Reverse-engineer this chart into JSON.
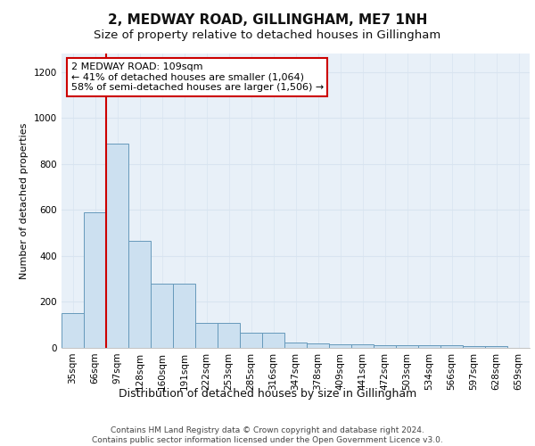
{
  "title": "2, MEDWAY ROAD, GILLINGHAM, ME7 1NH",
  "subtitle": "Size of property relative to detached houses in Gillingham",
  "xlabel": "Distribution of detached houses by size in Gillingham",
  "ylabel": "Number of detached properties",
  "categories": [
    "35sqm",
    "66sqm",
    "97sqm",
    "128sqm",
    "160sqm",
    "191sqm",
    "222sqm",
    "253sqm",
    "285sqm",
    "316sqm",
    "347sqm",
    "378sqm",
    "409sqm",
    "441sqm",
    "472sqm",
    "503sqm",
    "534sqm",
    "566sqm",
    "597sqm",
    "628sqm",
    "659sqm"
  ],
  "values": [
    150,
    590,
    890,
    465,
    280,
    280,
    110,
    110,
    65,
    65,
    25,
    20,
    15,
    15,
    10,
    10,
    10,
    10,
    8,
    8,
    0
  ],
  "bar_color": "#cce0f0",
  "bar_edge_color": "#6699bb",
  "red_line_index": 2,
  "annotation_text": "2 MEDWAY ROAD: 109sqm\n← 41% of detached houses are smaller (1,064)\n58% of semi-detached houses are larger (1,506) →",
  "annotation_box_color": "#ffffff",
  "annotation_box_edge_color": "#cc0000",
  "ylim": [
    0,
    1280
  ],
  "yticks": [
    0,
    200,
    400,
    600,
    800,
    1000,
    1200
  ],
  "grid_color": "#d8e4f0",
  "background_color": "#e8f0f8",
  "footer_text": "Contains HM Land Registry data © Crown copyright and database right 2024.\nContains public sector information licensed under the Open Government Licence v3.0.",
  "title_fontsize": 11,
  "subtitle_fontsize": 9.5,
  "xlabel_fontsize": 9,
  "ylabel_fontsize": 8,
  "tick_fontsize": 7.5,
  "annotation_fontsize": 8,
  "footer_fontsize": 6.5
}
